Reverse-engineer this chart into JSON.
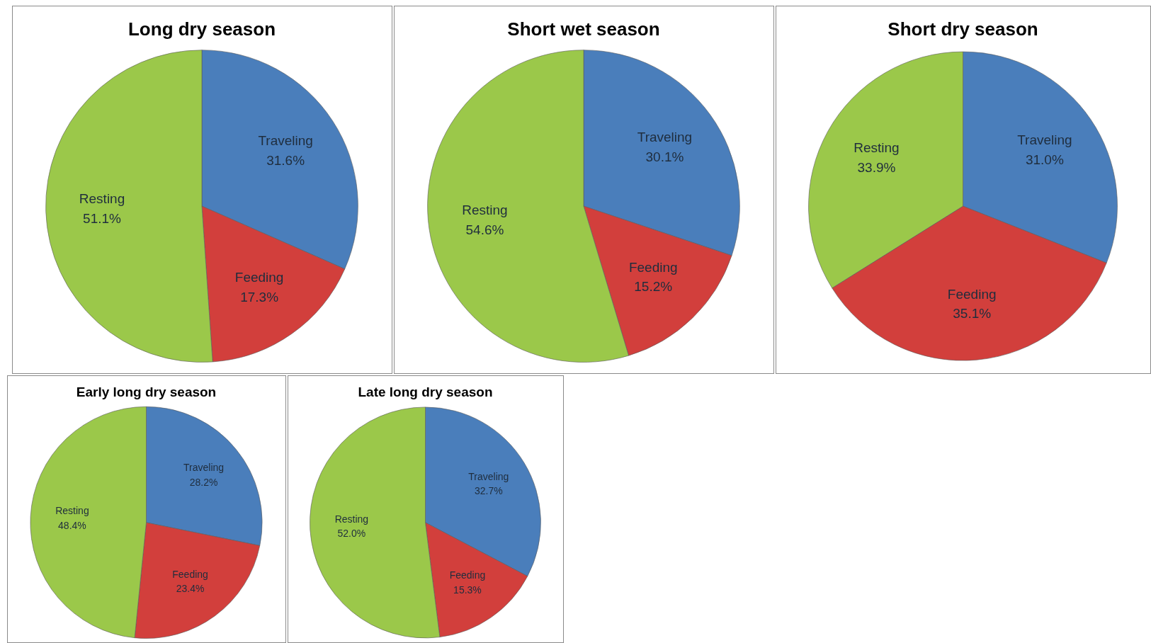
{
  "chart_data": [
    {
      "type": "pie",
      "title": "Long dry season",
      "categories": [
        "Traveling",
        "Feeding",
        "Resting"
      ],
      "values": [
        31.6,
        17.3,
        51.1
      ],
      "value_labels": [
        "31.6%",
        "17.3%",
        "51.1%"
      ],
      "colors": [
        "#4a7ebb",
        "#d23f3c",
        "#9bc84a"
      ],
      "legend": false
    },
    {
      "type": "pie",
      "title": "Short wet season",
      "categories": [
        "Traveling",
        "Feeding",
        "Resting"
      ],
      "values": [
        30.1,
        15.2,
        54.6
      ],
      "value_labels": [
        "30.1%",
        "15.2%",
        "54.6%"
      ],
      "colors": [
        "#4a7ebb",
        "#d23f3c",
        "#9bc84a"
      ],
      "legend": false
    },
    {
      "type": "pie",
      "title": "Short dry season",
      "categories": [
        "Traveling",
        "Feeding",
        "Resting"
      ],
      "values": [
        31.0,
        35.1,
        33.9
      ],
      "value_labels": [
        "31.0%",
        "35.1%",
        "33.9%"
      ],
      "colors": [
        "#4a7ebb",
        "#d23f3c",
        "#9bc84a"
      ],
      "legend": false
    },
    {
      "type": "pie",
      "title": "Early long dry season",
      "categories": [
        "Traveling",
        "Feeding",
        "Resting"
      ],
      "values": [
        28.2,
        23.4,
        48.4
      ],
      "value_labels": [
        "28.2%",
        "23.4%",
        "48.4%"
      ],
      "colors": [
        "#4a7ebb",
        "#d23f3c",
        "#9bc84a"
      ],
      "legend": false
    },
    {
      "type": "pie",
      "title": "Late long dry season",
      "categories": [
        "Traveling",
        "Feeding",
        "Resting"
      ],
      "values": [
        32.7,
        15.3,
        52.0
      ],
      "value_labels": [
        "32.7%",
        "15.3%",
        "52.0%"
      ],
      "colors": [
        "#4a7ebb",
        "#d23f3c",
        "#9bc84a"
      ],
      "legend": false
    }
  ]
}
